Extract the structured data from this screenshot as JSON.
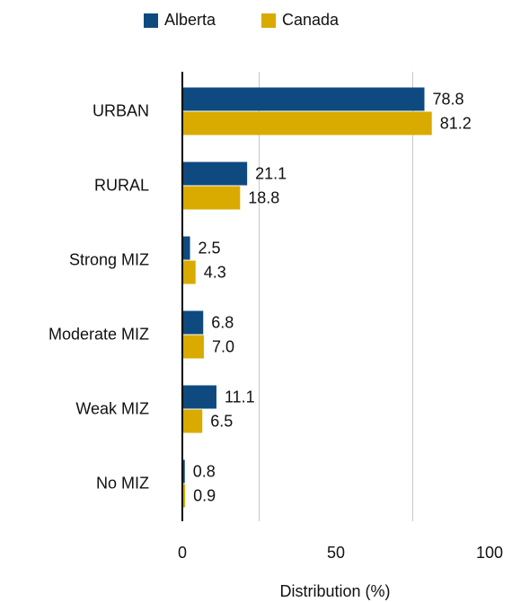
{
  "chart_data": {
    "type": "barh",
    "categories": [
      "URBAN",
      "RURAL",
      "Strong MIZ",
      "Moderate MIZ",
      "Weak MIZ",
      "No MIZ"
    ],
    "series": [
      {
        "name": "Alberta",
        "color": "#0e4a80",
        "values": [
          78.8,
          21.1,
          2.5,
          6.8,
          11.1,
          0.8
        ],
        "value_labels": [
          "78.8",
          "21.1",
          "2.5",
          "6.8",
          "11.1",
          "0.8"
        ]
      },
      {
        "name": "Canada",
        "color": "#d9aa00",
        "values": [
          81.2,
          18.8,
          4.3,
          7.0,
          6.5,
          0.9
        ],
        "value_labels": [
          "81.2",
          "18.8",
          "4.3",
          "7.0",
          "6.5",
          "0.9"
        ]
      }
    ],
    "xlabel": "Distribution (%)",
    "xlim": [
      0,
      100
    ],
    "xticks": [
      0,
      50,
      100
    ],
    "xgrid": [
      25,
      75
    ],
    "legend": "top"
  }
}
